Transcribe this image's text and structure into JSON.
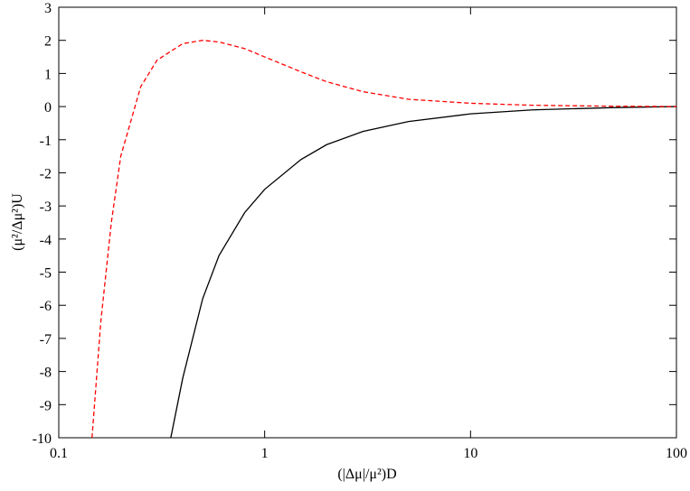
{
  "chart_data": {
    "type": "line",
    "xlabel": "(|Δμ|/μ²)D",
    "ylabel": "(μ²/Δμ²)U",
    "xscale": "log",
    "xlim": [
      0.1,
      100
    ],
    "xticks": [
      0.1,
      1,
      10,
      100
    ],
    "ylim": [
      -10,
      3
    ],
    "yticks": [
      -10,
      -9,
      -8,
      -7,
      -6,
      -5,
      -4,
      -3,
      -2,
      -1,
      0,
      1,
      2,
      3
    ],
    "series": [
      {
        "color": "#000000",
        "dash": false,
        "x": [
          0.35,
          0.4,
          0.5,
          0.6,
          0.8,
          1,
          1.5,
          2,
          3,
          5,
          10,
          20,
          50,
          100
        ],
        "values": [
          -10,
          -8.2,
          -5.8,
          -4.5,
          -3.2,
          -2.5,
          -1.6,
          -1.15,
          -0.75,
          -0.45,
          -0.22,
          -0.1,
          -0.03,
          0
        ]
      },
      {
        "color": "#ff0000",
        "dash": true,
        "x": [
          0.145,
          0.16,
          0.18,
          0.2,
          0.25,
          0.3,
          0.4,
          0.5,
          0.6,
          0.8,
          1,
          1.5,
          2,
          3,
          5,
          10,
          20,
          50,
          100
        ],
        "values": [
          -10,
          -6.5,
          -3.5,
          -1.5,
          0.6,
          1.4,
          1.9,
          2.0,
          1.95,
          1.75,
          1.5,
          1.05,
          0.75,
          0.45,
          0.22,
          0.1,
          0.04,
          0.01,
          0
        ]
      }
    ]
  }
}
